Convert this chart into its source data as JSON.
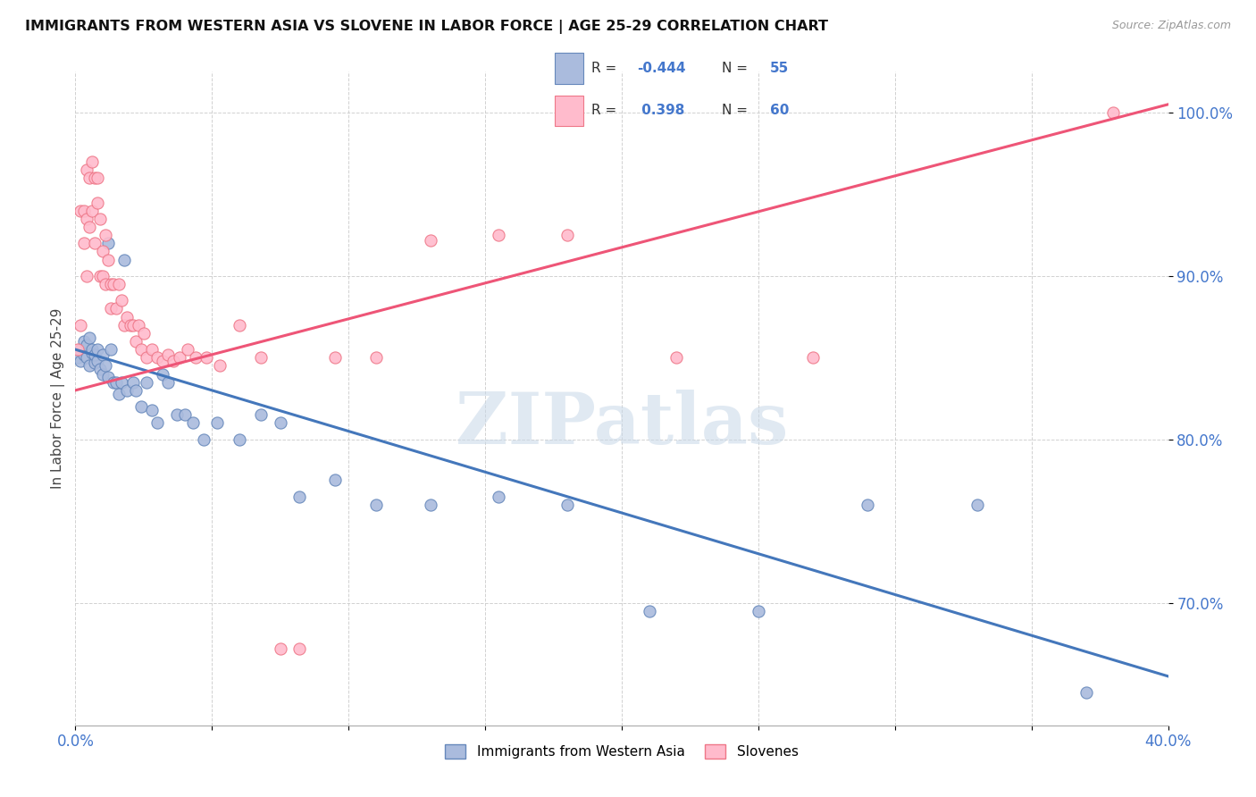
{
  "title": "IMMIGRANTS FROM WESTERN ASIA VS SLOVENE IN LABOR FORCE | AGE 25-29 CORRELATION CHART",
  "source": "Source: ZipAtlas.com",
  "ylabel": "In Labor Force | Age 25-29",
  "xlim": [
    0.0,
    0.4
  ],
  "ylim": [
    0.625,
    1.025
  ],
  "xticks": [
    0.0,
    0.05,
    0.1,
    0.15,
    0.2,
    0.25,
    0.3,
    0.35,
    0.4
  ],
  "yticks": [
    0.7,
    0.8,
    0.9,
    1.0
  ],
  "blue_R": -0.444,
  "blue_N": 55,
  "pink_R": 0.398,
  "pink_N": 60,
  "blue_line_color": "#4477BB",
  "pink_line_color": "#EE5577",
  "blue_dot_facecolor": "#AABBDD",
  "blue_dot_edgecolor": "#6688BB",
  "pink_dot_facecolor": "#FFBBCC",
  "pink_dot_edgecolor": "#EE7788",
  "watermark": "ZIPatlas",
  "legend_label_blue": "Immigrants from Western Asia",
  "legend_label_pink": "Slovenes",
  "blue_trend_x0": 0.0,
  "blue_trend_y0": 0.855,
  "blue_trend_x1": 0.4,
  "blue_trend_y1": 0.655,
  "pink_trend_x0": 0.0,
  "pink_trend_y0": 0.83,
  "pink_trend_x1": 0.4,
  "pink_trend_y1": 1.005,
  "blue_points_x": [
    0.001,
    0.002,
    0.002,
    0.003,
    0.003,
    0.004,
    0.004,
    0.005,
    0.005,
    0.006,
    0.006,
    0.007,
    0.007,
    0.008,
    0.008,
    0.009,
    0.01,
    0.01,
    0.011,
    0.012,
    0.012,
    0.013,
    0.014,
    0.015,
    0.016,
    0.017,
    0.018,
    0.019,
    0.021,
    0.022,
    0.024,
    0.026,
    0.028,
    0.03,
    0.032,
    0.034,
    0.037,
    0.04,
    0.043,
    0.047,
    0.052,
    0.06,
    0.068,
    0.075,
    0.082,
    0.095,
    0.11,
    0.13,
    0.155,
    0.18,
    0.21,
    0.25,
    0.29,
    0.33,
    0.37
  ],
  "blue_points_y": [
    0.85,
    0.855,
    0.848,
    0.852,
    0.86,
    0.85,
    0.858,
    0.845,
    0.862,
    0.853,
    0.855,
    0.847,
    0.852,
    0.855,
    0.848,
    0.843,
    0.852,
    0.84,
    0.845,
    0.838,
    0.92,
    0.855,
    0.835,
    0.835,
    0.828,
    0.835,
    0.91,
    0.83,
    0.835,
    0.83,
    0.82,
    0.835,
    0.818,
    0.81,
    0.84,
    0.835,
    0.815,
    0.815,
    0.81,
    0.8,
    0.81,
    0.8,
    0.815,
    0.81,
    0.765,
    0.775,
    0.76,
    0.76,
    0.765,
    0.76,
    0.695,
    0.695,
    0.76,
    0.76,
    0.645
  ],
  "pink_points_x": [
    0.001,
    0.002,
    0.002,
    0.003,
    0.003,
    0.004,
    0.004,
    0.004,
    0.005,
    0.005,
    0.006,
    0.006,
    0.007,
    0.007,
    0.008,
    0.008,
    0.009,
    0.009,
    0.01,
    0.01,
    0.011,
    0.011,
    0.012,
    0.013,
    0.013,
    0.014,
    0.015,
    0.016,
    0.017,
    0.018,
    0.019,
    0.02,
    0.021,
    0.022,
    0.023,
    0.024,
    0.025,
    0.026,
    0.028,
    0.03,
    0.032,
    0.034,
    0.036,
    0.038,
    0.041,
    0.044,
    0.048,
    0.053,
    0.06,
    0.068,
    0.075,
    0.082,
    0.095,
    0.11,
    0.13,
    0.155,
    0.18,
    0.22,
    0.27,
    0.38
  ],
  "pink_points_y": [
    0.855,
    0.94,
    0.87,
    0.94,
    0.92,
    0.965,
    0.935,
    0.9,
    0.96,
    0.93,
    0.97,
    0.94,
    0.96,
    0.92,
    0.96,
    0.945,
    0.935,
    0.9,
    0.915,
    0.9,
    0.925,
    0.895,
    0.91,
    0.895,
    0.88,
    0.895,
    0.88,
    0.895,
    0.885,
    0.87,
    0.875,
    0.87,
    0.87,
    0.86,
    0.87,
    0.855,
    0.865,
    0.85,
    0.855,
    0.85,
    0.848,
    0.852,
    0.848,
    0.85,
    0.855,
    0.85,
    0.85,
    0.845,
    0.87,
    0.85,
    0.672,
    0.672,
    0.85,
    0.85,
    0.922,
    0.925,
    0.925,
    0.85,
    0.85,
    1.0
  ]
}
